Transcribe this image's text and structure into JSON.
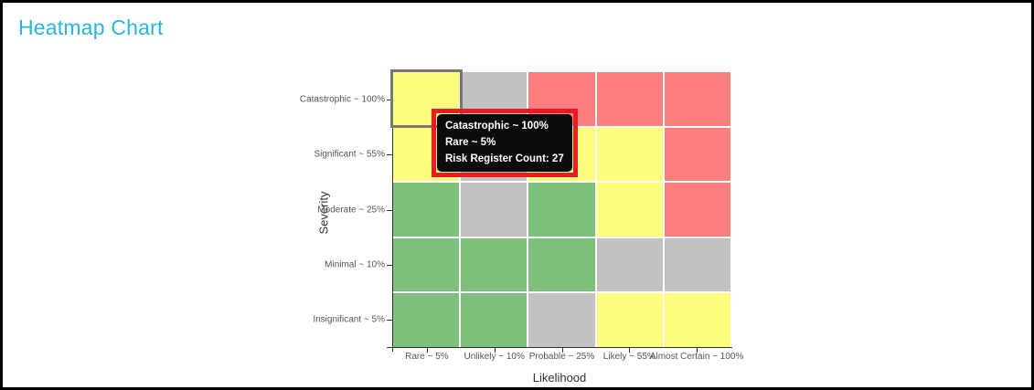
{
  "page": {
    "title": "Heatmap Chart",
    "title_color": "#2ab5da"
  },
  "chart_data": {
    "type": "heatmap",
    "title": "Heatmap Chart",
    "xlabel": "Likelihood",
    "ylabel": "Severity",
    "x_categories": [
      "Rare ~ 5%",
      "Unlikely ~ 10%",
      "Probable ~ 25%",
      "Likely ~ 55%",
      "Almost Certain ~ 100%"
    ],
    "y_categories": [
      "Catastrophic ~ 100%",
      "Significant ~ 55%",
      "Moderate ~ 25%",
      "Minimal ~ 10%",
      "Insignificant ~ 5%"
    ],
    "cell_colors": {
      "green": "#7dc17d",
      "yellow": "#fdfd7d",
      "gray": "#c2c2c2",
      "red": "#fd7f7f"
    },
    "rows": [
      {
        "severity": "Catastrophic ~ 100%",
        "cells": [
          "yellow",
          "gray",
          "red",
          "red",
          "red"
        ]
      },
      {
        "severity": "Significant ~ 55%",
        "cells": [
          "yellow",
          "gray",
          "yellow",
          "yellow",
          "red"
        ]
      },
      {
        "severity": "Moderate ~ 25%",
        "cells": [
          "green",
          "gray",
          "green",
          "yellow",
          "red"
        ]
      },
      {
        "severity": "Minimal ~ 10%",
        "cells": [
          "green",
          "green",
          "green",
          "gray",
          "gray"
        ]
      },
      {
        "severity": "Insignificant ~ 5%",
        "cells": [
          "green",
          "green",
          "gray",
          "yellow",
          "yellow"
        ]
      }
    ],
    "selected": {
      "row_index": 0,
      "col_index": 0,
      "severity": "Catastrophic ~ 100%",
      "likelihood": "Rare ~ 5%",
      "risk_register_count": 27
    },
    "legend": "off",
    "grid_line_color": "#ffffff"
  },
  "tooltip": {
    "lines": [
      "Catastrophic ~ 100%",
      "Rare ~ 5%",
      "Risk Register Count: 27"
    ],
    "border_color": "#e71d25",
    "background_color": "#0c0c0c"
  }
}
